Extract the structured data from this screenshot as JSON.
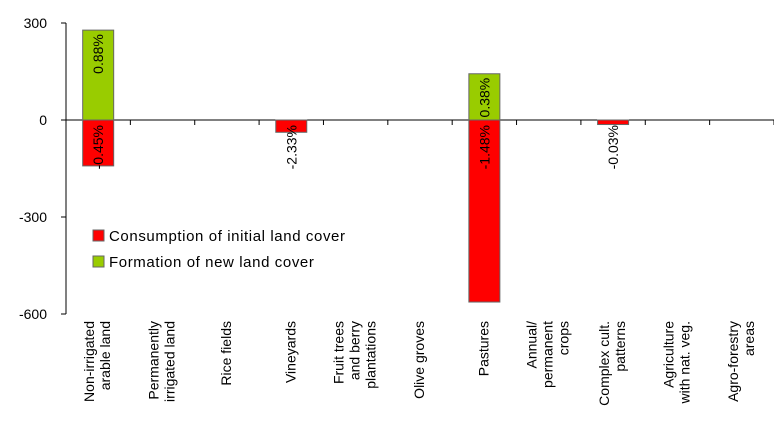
{
  "chart_data": {
    "type": "bar",
    "stacked": true,
    "categories": [
      [
        "Non-irrigated",
        "arable land"
      ],
      [
        "Permanently",
        "irrigated land"
      ],
      [
        "Rice fields"
      ],
      [
        "Vineyards"
      ],
      [
        "Fruit trees",
        "and berry",
        "plantations"
      ],
      [
        "Olive groves"
      ],
      [
        "Pastures"
      ],
      [
        "Annual/",
        "permanent",
        "crops"
      ],
      [
        "Complex cult.",
        "patterns"
      ],
      [
        "Agriculture",
        "with nat. veg."
      ],
      [
        "Agro-forestry",
        "areas"
      ]
    ],
    "series": [
      {
        "name": "Consumption of initial land cover",
        "color": "#ff0000",
        "values": [
          -142,
          0,
          0,
          -38,
          0,
          0,
          -563,
          0,
          -14,
          0,
          0
        ],
        "labels": [
          "-0.45%",
          "",
          "",
          "-2.33%",
          "",
          "",
          "-1.48%",
          "",
          "-0.03%",
          "",
          ""
        ]
      },
      {
        "name": "Formation of new land cover",
        "color": "#99cc00",
        "values": [
          278,
          0,
          0,
          0,
          0,
          0,
          143,
          0,
          0,
          0,
          0
        ],
        "labels": [
          "0.88%",
          "",
          "",
          "",
          "",
          "",
          "0.38%",
          "",
          "",
          "",
          ""
        ]
      }
    ],
    "yticks": [
      300,
      0,
      -300,
      -600
    ],
    "ylim": [
      -600,
      300
    ],
    "legend_position": "left-center",
    "grid": false
  }
}
